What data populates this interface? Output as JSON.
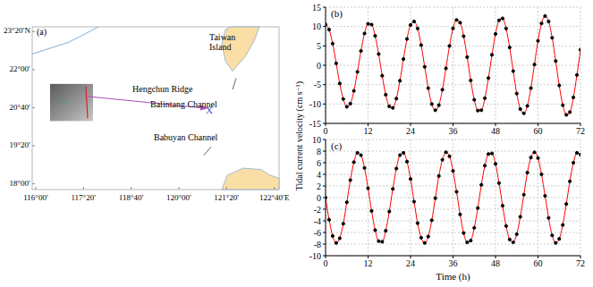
{
  "chart_data": [
    {
      "type": "map",
      "label": "(a)",
      "xlim": [
        115.9,
        122.8
      ],
      "ylim": [
        17.8,
        23.5
      ],
      "xticks": [
        {
          "value": 116,
          "label": "116°00′"
        },
        {
          "value": 117.333,
          "label": "117°20′"
        },
        {
          "value": 118.667,
          "label": "118°40′"
        },
        {
          "value": 120,
          "label": "120°00′"
        },
        {
          "value": 121.333,
          "label": "121°20′"
        },
        {
          "value": 122.667,
          "label": "122°40′E"
        }
      ],
      "yticks": [
        {
          "value": 23.333,
          "label": "23°20′N"
        },
        {
          "value": 22,
          "label": "22°00′"
        },
        {
          "value": 20.667,
          "label": "20°40′"
        },
        {
          "value": 19.333,
          "label": "19°20′"
        },
        {
          "value": 18,
          "label": "18°00′"
        }
      ],
      "annotations": [
        {
          "text": "Taiwan Island",
          "lon": 121.6,
          "lat": 23.1
        },
        {
          "text": "Hengchun Ridge",
          "lon": 118.7,
          "lat": 21.3
        },
        {
          "text": "Balintang Channel",
          "lon": 119.2,
          "lat": 20.75
        },
        {
          "text": "X",
          "lon": 120.85,
          "lat": 20.55
        },
        {
          "text": "Babuyan Channel",
          "lon": 119.3,
          "lat": 19.6
        }
      ]
    },
    {
      "type": "line",
      "label": "(b)",
      "ylabel": "Tidal current velocity (cm s⁻¹)",
      "x": [
        0,
        1,
        2,
        3,
        4,
        5,
        6,
        7,
        8,
        9,
        10,
        11,
        12,
        13,
        14,
        15,
        16,
        17,
        18,
        19,
        20,
        21,
        22,
        23,
        24,
        25,
        26,
        27,
        28,
        29,
        30,
        31,
        32,
        33,
        34,
        35,
        36,
        37,
        38,
        39,
        40,
        41,
        42,
        43,
        44,
        45,
        46,
        47,
        48,
        49,
        50,
        51,
        52,
        53,
        54,
        55,
        56,
        57,
        58,
        59,
        60,
        61,
        62,
        63,
        64,
        65,
        66,
        67,
        68,
        69,
        70,
        71,
        72
      ],
      "series": [
        {
          "color": "#ff0000",
          "marker": "circle",
          "values": [
            10.5,
            9.2,
            5.6,
            0.5,
            -4.7,
            -8.7,
            -10.7,
            -9.9,
            -6.6,
            -1.7,
            3.7,
            8.2,
            10.7,
            10.5,
            7.6,
            2.9,
            -2.7,
            -7.6,
            -10.6,
            -11.0,
            -8.6,
            -4.0,
            1.6,
            6.8,
            10.4,
            11.3,
            9.5,
            5.2,
            -0.4,
            -5.9,
            -10.0,
            -11.6,
            -10.3,
            -6.3,
            -0.8,
            5.0,
            9.5,
            11.7,
            11.0,
            7.5,
            2.1,
            -3.9,
            -8.9,
            -11.7,
            -11.6,
            -8.5,
            -3.3,
            2.7,
            8.1,
            11.6,
            12.1,
            9.5,
            4.6,
            -1.5,
            -7.3,
            -11.3,
            -12.4,
            -10.5,
            -5.9,
            0.2,
            6.3,
            10.8,
            12.7,
            11.3,
            7.1,
            1.1,
            -5.2,
            -10.3,
            -12.8,
            -12.1,
            -8.3,
            -2.5,
            4.0
          ]
        }
      ],
      "xlim": [
        0,
        72
      ],
      "xticks": [
        0,
        12,
        24,
        36,
        48,
        60,
        72
      ],
      "ylim": [
        -15,
        15
      ],
      "yticks": [
        -15,
        -10,
        -5,
        0,
        5,
        10,
        15
      ],
      "grid": true
    },
    {
      "type": "line",
      "label": "(c)",
      "xlabel": "Time (h)",
      "x": [
        0,
        1,
        2,
        3,
        4,
        5,
        6,
        7,
        8,
        9,
        10,
        11,
        12,
        13,
        14,
        15,
        16,
        17,
        18,
        19,
        20,
        21,
        22,
        23,
        24,
        25,
        26,
        27,
        28,
        29,
        30,
        31,
        32,
        33,
        34,
        35,
        36,
        37,
        38,
        39,
        40,
        41,
        42,
        43,
        44,
        45,
        46,
        47,
        48,
        49,
        50,
        51,
        52,
        53,
        54,
        55,
        56,
        57,
        58,
        59,
        60,
        61,
        62,
        63,
        64,
        65,
        66,
        67,
        68,
        69,
        70,
        71,
        72
      ],
      "series": [
        {
          "color": "#ff0000",
          "marker": "circle",
          "values": [
            0,
            -3.8,
            -6.6,
            -7.8,
            -7.0,
            -4.5,
            -0.8,
            3.0,
            6.1,
            7.7,
            7.3,
            5.1,
            1.6,
            -2.3,
            -5.6,
            -7.5,
            -7.6,
            -5.7,
            -2.4,
            1.5,
            5.0,
            7.3,
            7.7,
            6.2,
            3.2,
            -0.7,
            -4.4,
            -6.9,
            -7.8,
            -6.7,
            -3.9,
            -0.1,
            3.7,
            6.5,
            7.8,
            7.1,
            4.6,
            1.0,
            -2.9,
            -6.1,
            -7.7,
            -7.4,
            -5.2,
            -1.8,
            2.2,
            5.5,
            7.5,
            7.6,
            5.8,
            2.5,
            -1.4,
            -4.9,
            -7.2,
            -7.7,
            -6.3,
            -3.3,
            0.5,
            4.3,
            6.9,
            7.8,
            6.8,
            4.0,
            0.3,
            -3.5,
            -6.5,
            -7.8,
            -7.1,
            -4.7,
            -1.1,
            2.8,
            6.0,
            7.7,
            7.4
          ]
        }
      ],
      "xlim": [
        0,
        72
      ],
      "xticks": [
        0,
        12,
        24,
        36,
        48,
        60,
        72
      ],
      "ylim": [
        -10,
        10
      ],
      "yticks": [
        -10,
        -8,
        -6,
        -4,
        -2,
        0,
        2,
        4,
        6,
        8,
        10
      ],
      "grid": true
    }
  ]
}
